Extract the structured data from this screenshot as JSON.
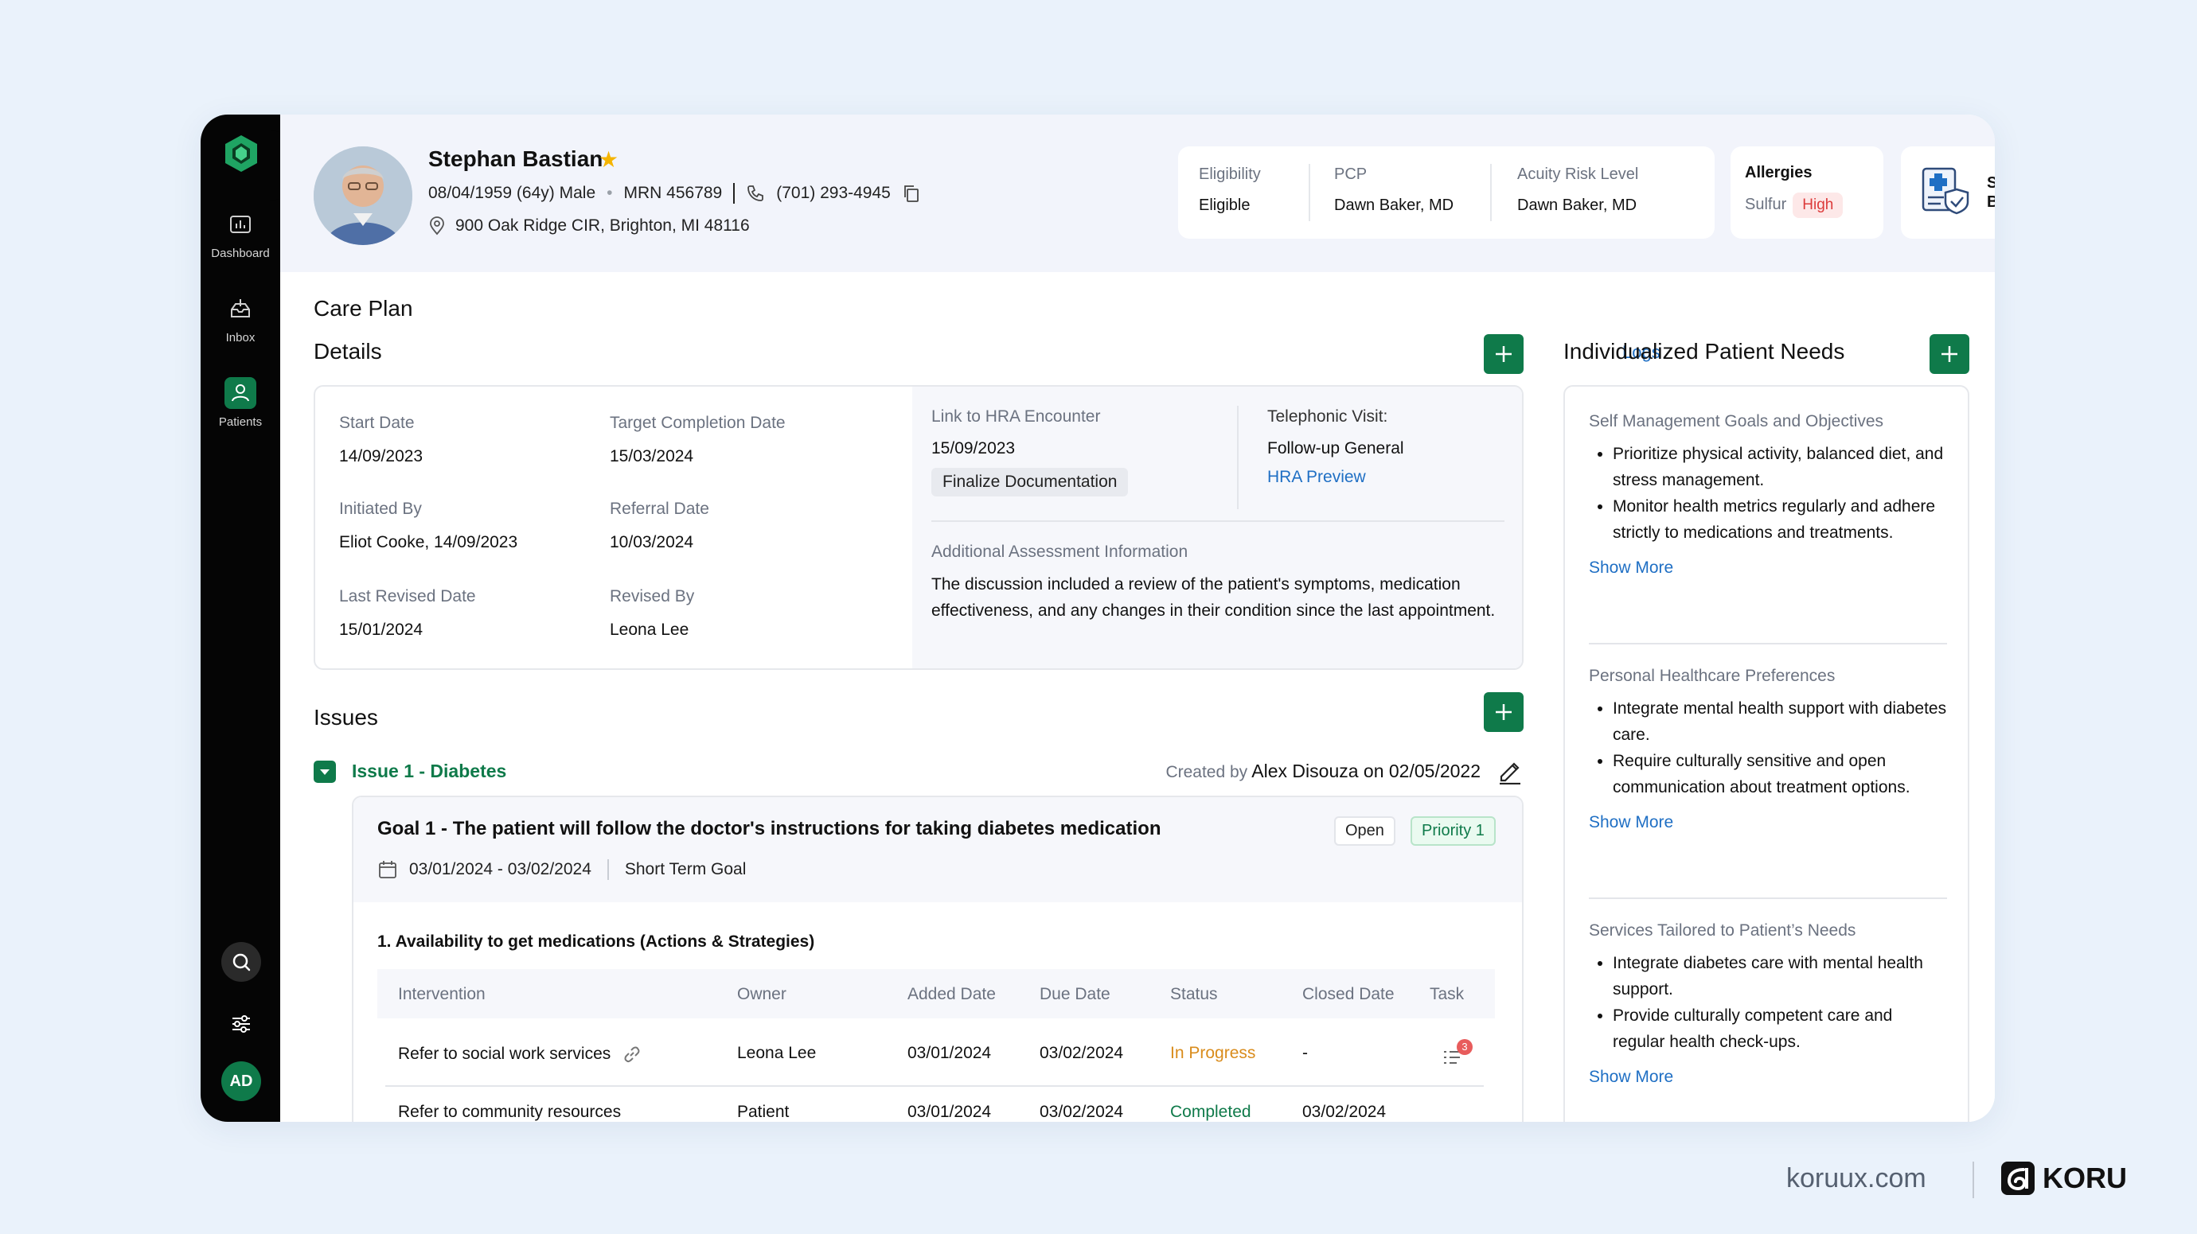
{
  "sidebar": {
    "nav": [
      {
        "label": "Dashboard",
        "icon": "dashboard-icon"
      },
      {
        "label": "Inbox",
        "icon": "inbox-icon"
      },
      {
        "label": "Patients",
        "icon": "patients-icon"
      }
    ],
    "user_initials": "AD"
  },
  "patient": {
    "name": "Stephan Bastian",
    "dob": "08/04/1959 (64y) Male",
    "mrn": "MRN 456789",
    "phone": "(701) 293-4945",
    "address": "900 Oak Ridge CIR, Brighton, MI 48116"
  },
  "eligibility": {
    "eligibility_label": "Eligibility",
    "eligibility_value": "Eligible",
    "pcp_label": "PCP",
    "pcp_value": "Dawn Baker, MD",
    "acuity_label": "Acuity Risk Level",
    "acuity_value": "Dawn Baker, MD"
  },
  "allergies": {
    "label": "Allergies",
    "item": "Sulfur",
    "severity": "High"
  },
  "insurance": {
    "line1": "SafeLife",
    "line2": "BlueShield"
  },
  "care_plan": {
    "title": "Care Plan",
    "details_title": "Details",
    "logs": "Logs",
    "fields": {
      "start_label": "Start Date",
      "start_value": "14/09/2023",
      "target_label": "Target Completion Date",
      "target_value": "15/03/2024",
      "initiated_label": "Initiated By",
      "initiated_value": "Eliot Cooke, 14/09/2023",
      "referral_label": "Referral Date",
      "referral_value": "10/03/2024",
      "revised_date_label": "Last Revised Date",
      "revised_date_value": "15/01/2024",
      "revised_by_label": "Revised By",
      "revised_by_value": "Leona Lee",
      "hra_label": "Link to HRA Encounter",
      "hra_value": "15/09/2023",
      "finalize": "Finalize Documentation",
      "tele_label": "Telephonic Visit:",
      "tele_value": "Follow-up General",
      "hra_preview": "HRA Preview",
      "additional_label": "Additional Assessment Information",
      "additional_value": "The discussion included a review of the patient's symptoms, medication effectiveness, and any changes in their condition since the last appointment."
    }
  },
  "issues": {
    "title": "Issues",
    "issue_title": "Issue 1 - Diabetes",
    "created_label": "Created by",
    "created_value": "Alex Disouza on 02/05/2022",
    "goal": {
      "title": "Goal 1 - The patient will follow the doctor's instructions for taking diabetes medication",
      "status": "Open",
      "priority": "Priority 1",
      "dates": "03/01/2024 - 03/02/2024",
      "term": "Short Term Goal",
      "action_title": "1. Availability to get medications (Actions & Strategies)",
      "columns": [
        "Intervention",
        "Owner",
        "Added Date",
        "Due Date",
        "Status",
        "Closed Date",
        "Task"
      ],
      "rows": [
        {
          "intervention": "Refer to social work services",
          "owner": "Leona Lee",
          "added": "03/01/2024",
          "due": "03/02/2024",
          "status": "In Progress",
          "closed": "-",
          "task_badge": "3"
        },
        {
          "intervention": "Refer to community resources",
          "owner": "Patient",
          "added": "03/01/2024",
          "due": "03/02/2024",
          "status": "Completed",
          "closed": "03/02/2024",
          "task_badge": ""
        }
      ],
      "status_colors": {
        "in_progress": "#d98c1c",
        "completed": "#0f7a4a"
      }
    }
  },
  "needs": {
    "title": "Individualized Patient Needs",
    "sections": [
      {
        "title": "Self Management Goals and Objectives",
        "items": [
          "Prioritize physical activity, balanced diet, and stress management.",
          "Monitor health metrics regularly and adhere strictly to medications and treatments."
        ],
        "more": "Show More"
      },
      {
        "title": "Personal Healthcare Preferences",
        "items": [
          "Integrate mental health support with diabetes care.",
          "Require culturally sensitive and open communication about treatment options."
        ],
        "more": "Show More"
      },
      {
        "title": "Services Tailored to Patient’s Needs",
        "items": [
          "Integrate diabetes care with mental health support.",
          "Provide culturally competent care and regular health check-ups."
        ],
        "more": "Show More"
      }
    ]
  },
  "footer": {
    "site": "koruux.com",
    "brand": "KORU"
  },
  "colors": {
    "accent": "#0f7a4a",
    "link": "#1f6fc4",
    "sidebar": "#050505"
  }
}
